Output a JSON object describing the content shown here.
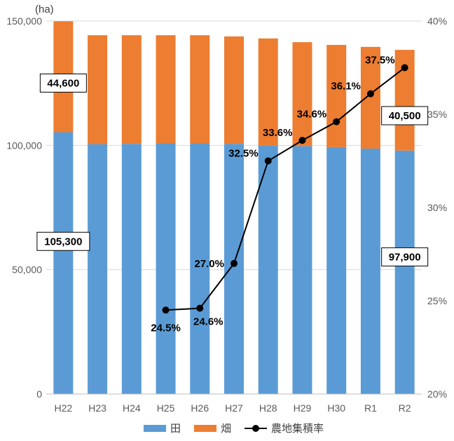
{
  "chart_data": {
    "type": "bar",
    "stacked": true,
    "unit_label": "(ha)",
    "categories": [
      "H22",
      "H23",
      "H24",
      "H25",
      "H26",
      "H27",
      "H28",
      "H29",
      "H30",
      "R1",
      "R2"
    ],
    "series": [
      {
        "name": "田",
        "color": "#5B9BD5",
        "values": [
          105300,
          100500,
          100600,
          100800,
          100800,
          100600,
          100000,
          99700,
          99300,
          98700,
          97900
        ]
      },
      {
        "name": "畑",
        "color": "#ED7D31",
        "values": [
          44600,
          43800,
          43700,
          43500,
          43500,
          43200,
          43000,
          41800,
          41100,
          40900,
          40500
        ]
      }
    ],
    "line_series": {
      "name": "農地集積率",
      "color": "#000000",
      "categories": [
        "H25",
        "H26",
        "H27",
        "H28",
        "H29",
        "H30",
        "R1",
        "R2"
      ],
      "values": [
        24.5,
        24.6,
        27.0,
        32.5,
        33.6,
        34.6,
        36.1,
        37.5
      ],
      "labels": [
        "24.5%",
        "24.6%",
        "27.0%",
        "32.5%",
        "33.6%",
        "34.6%",
        "36.1%",
        "37.5%"
      ]
    },
    "y_left": {
      "min": 0,
      "max": 150000,
      "ticks": [
        0,
        50000,
        100000,
        150000
      ],
      "tick_labels": [
        "0",
        "50,000",
        "100,000",
        "150,000"
      ]
    },
    "y_right": {
      "min": 20,
      "max": 40,
      "ticks": [
        20,
        25,
        30,
        35,
        40
      ],
      "tick_labels": [
        "20%",
        "25%",
        "30%",
        "35%",
        "40%"
      ]
    },
    "bar_callouts": [
      {
        "category": "H22",
        "series": "畑",
        "text": "44,600"
      },
      {
        "category": "H22",
        "series": "田",
        "text": "105,300"
      },
      {
        "category": "R2",
        "series": "畑",
        "text": "40,500"
      },
      {
        "category": "R2",
        "series": "田",
        "text": "97,900"
      }
    ],
    "grid": true,
    "legend_position": "bottom"
  }
}
